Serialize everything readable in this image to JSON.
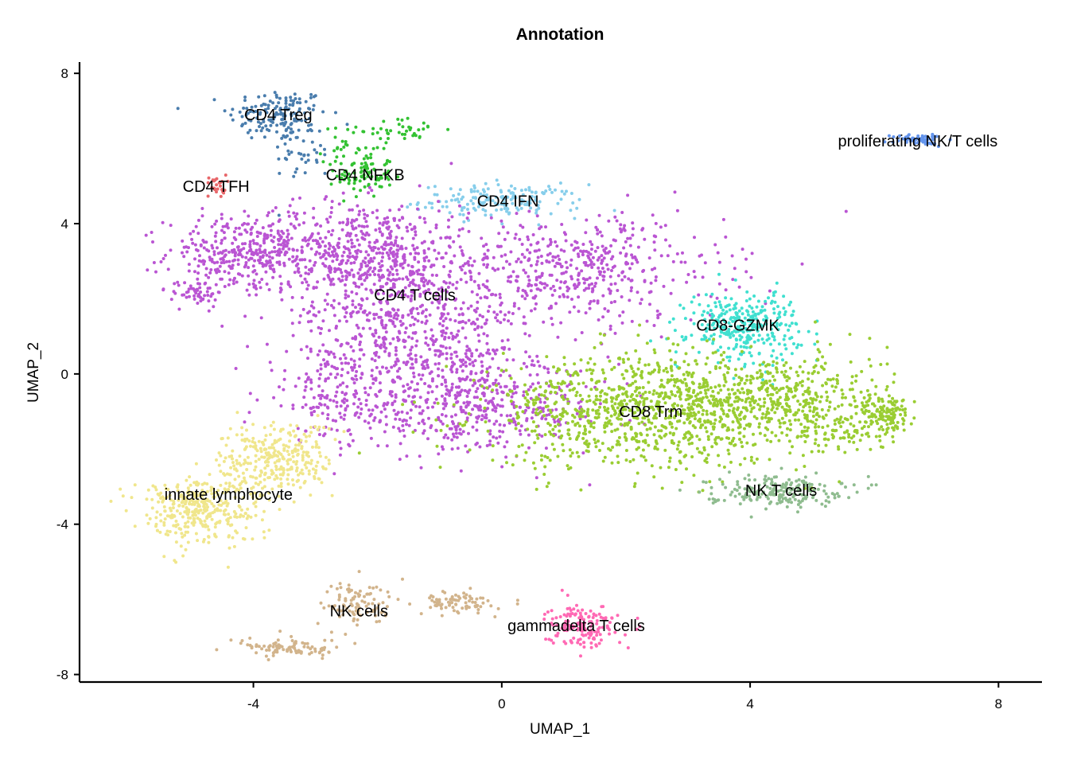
{
  "chart_data": {
    "type": "scatter",
    "title": "Annotation",
    "xlabel": "UMAP_1",
    "ylabel": "UMAP_2",
    "xlim": [
      -6.8,
      8.7
    ],
    "ylim": [
      -8.2,
      8.3
    ],
    "x_ticks": [
      {
        "value": -4,
        "label": "-4"
      },
      {
        "value": 0,
        "label": "0"
      },
      {
        "value": 4,
        "label": "4"
      },
      {
        "value": 8,
        "label": "8"
      }
    ],
    "y_ticks": [
      {
        "value": 8,
        "label": "8"
      },
      {
        "value": 4,
        "label": "4"
      },
      {
        "value": 0,
        "label": "0"
      },
      {
        "value": -4,
        "label": "-4"
      },
      {
        "value": -8,
        "label": "-8"
      }
    ],
    "grid": false,
    "legend": "none",
    "clusters": [
      {
        "name": "CD4 Treg",
        "color": "#4A7DAD",
        "label_x": -3.6,
        "label_y": 6.9,
        "blobs": [
          {
            "x": -3.6,
            "y": 6.9,
            "sx": 0.4,
            "sy": 0.35,
            "n": 150
          },
          {
            "x": -3.2,
            "y": 5.9,
            "sx": 0.25,
            "sy": 0.4,
            "n": 40
          }
        ]
      },
      {
        "name": "CD4 NFKB",
        "color": "#33C232",
        "label_x": -2.2,
        "label_y": 5.3,
        "blobs": [
          {
            "x": -2.2,
            "y": 5.3,
            "sx": 0.22,
            "sy": 0.3,
            "n": 90
          },
          {
            "x": -1.6,
            "y": 6.5,
            "sx": 0.35,
            "sy": 0.15,
            "n": 40
          },
          {
            "x": -2.5,
            "y": 6.0,
            "sx": 0.2,
            "sy": 0.3,
            "n": 25
          }
        ]
      },
      {
        "name": "CD4 TFH",
        "color": "#E8676A",
        "label_x": -4.6,
        "label_y": 5.0,
        "blobs": [
          {
            "x": -4.6,
            "y": 5.0,
            "sx": 0.08,
            "sy": 0.15,
            "n": 25
          }
        ]
      },
      {
        "name": "CD4 IFN",
        "color": "#87CEEB",
        "label_x": 0.1,
        "label_y": 4.6,
        "blobs": [
          {
            "x": 0.0,
            "y": 4.6,
            "sx": 0.65,
            "sy": 0.22,
            "n": 170
          }
        ]
      },
      {
        "name": "CD4 T cells",
        "color": "#BA55D3",
        "label_x": -1.4,
        "label_y": 2.1,
        "blobs": [
          {
            "x": -4.2,
            "y": 3.2,
            "sx": 0.6,
            "sy": 0.5,
            "n": 300
          },
          {
            "x": -4.9,
            "y": 2.2,
            "sx": 0.2,
            "sy": 0.2,
            "n": 50
          },
          {
            "x": -2.3,
            "y": 3.2,
            "sx": 0.9,
            "sy": 0.7,
            "n": 600
          },
          {
            "x": -1.4,
            "y": 1.0,
            "sx": 0.9,
            "sy": 1.1,
            "n": 650
          },
          {
            "x": 1.2,
            "y": 2.8,
            "sx": 1.2,
            "sy": 0.7,
            "n": 500
          },
          {
            "x": -0.4,
            "y": -0.9,
            "sx": 1.1,
            "sy": 0.6,
            "n": 450
          },
          {
            "x": -2.8,
            "y": -0.6,
            "sx": 0.5,
            "sy": 0.6,
            "n": 120
          }
        ]
      },
      {
        "name": "CD8-GZMK",
        "color": "#40E0D0",
        "label_x": 3.8,
        "label_y": 1.3,
        "blobs": [
          {
            "x": 3.9,
            "y": 1.3,
            "sx": 0.45,
            "sy": 0.45,
            "n": 320
          }
        ]
      },
      {
        "name": "CD8 Trm",
        "color": "#9ACD32",
        "label_x": 2.4,
        "label_y": -1.0,
        "blobs": [
          {
            "x": 2.4,
            "y": -1.0,
            "sx": 1.3,
            "sy": 0.75,
            "n": 1000
          },
          {
            "x": 4.4,
            "y": -0.6,
            "sx": 0.9,
            "sy": 0.6,
            "n": 400
          },
          {
            "x": 6.2,
            "y": -1.1,
            "sx": 0.2,
            "sy": 0.3,
            "n": 120
          },
          {
            "x": 5.5,
            "y": -1.5,
            "sx": 0.35,
            "sy": 0.3,
            "n": 80
          }
        ]
      },
      {
        "name": "NK T cells",
        "color": "#8FBC8F",
        "label_x": 4.5,
        "label_y": -3.1,
        "blobs": [
          {
            "x": 4.4,
            "y": -3.1,
            "sx": 0.55,
            "sy": 0.2,
            "n": 200
          }
        ]
      },
      {
        "name": "innate lymphocyte",
        "color": "#F0E68C",
        "label_x": -4.4,
        "label_y": -3.2,
        "blobs": [
          {
            "x": -4.9,
            "y": -3.6,
            "sx": 0.5,
            "sy": 0.45,
            "n": 350
          },
          {
            "x": -3.6,
            "y": -2.3,
            "sx": 0.45,
            "sy": 0.5,
            "n": 300
          }
        ]
      },
      {
        "name": "NK cells",
        "color": "#D2B48C",
        "label_x": -2.3,
        "label_y": -6.3,
        "blobs": [
          {
            "x": -2.3,
            "y": -6.1,
            "sx": 0.3,
            "sy": 0.3,
            "n": 100
          },
          {
            "x": -3.4,
            "y": -7.3,
            "sx": 0.4,
            "sy": 0.12,
            "n": 90
          },
          {
            "x": -0.7,
            "y": -6.1,
            "sx": 0.3,
            "sy": 0.15,
            "n": 80
          }
        ]
      },
      {
        "name": "gammadelta T cells",
        "color": "#FF69B4",
        "label_x": 1.2,
        "label_y": -6.7,
        "blobs": [
          {
            "x": 1.3,
            "y": -6.7,
            "sx": 0.28,
            "sy": 0.28,
            "n": 160
          }
        ]
      },
      {
        "name": "proliferating NK/T cells",
        "color": "#6495ED",
        "label_x": 6.7,
        "label_y": 6.2,
        "blobs": [
          {
            "x": 6.7,
            "y": 6.25,
            "sx": 0.2,
            "sy": 0.08,
            "n": 60
          }
        ]
      }
    ]
  }
}
